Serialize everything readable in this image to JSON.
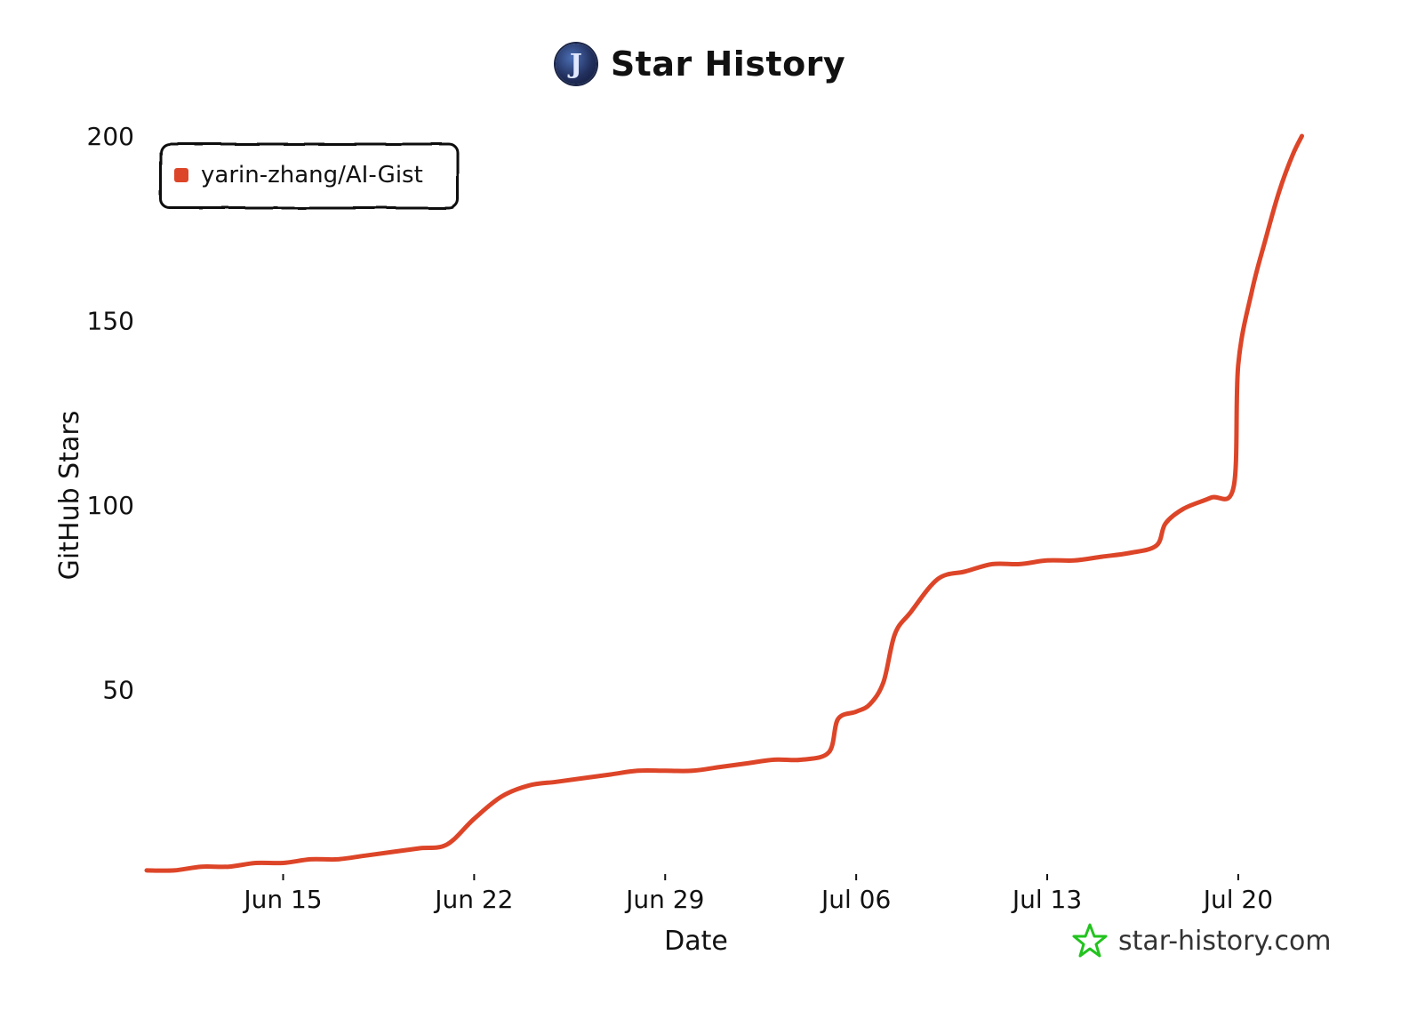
{
  "header": {
    "title": "Star History",
    "logo_letter": "J"
  },
  "watermark": {
    "text": "star-history.com",
    "icon": "star-icon",
    "icon_color": "#22c31e"
  },
  "chart_data": {
    "type": "line",
    "title": "Star History",
    "xlabel": "Date",
    "ylabel": "GitHub Stars",
    "x_type": "date",
    "xlim": [
      "2025-06-10",
      "2025-07-23"
    ],
    "ylim": [
      0,
      200
    ],
    "yticks": [
      50,
      100,
      150,
      200
    ],
    "xticks": [
      {
        "date": "2025-06-15",
        "label": "Jun 15"
      },
      {
        "date": "2025-06-22",
        "label": "Jun 22"
      },
      {
        "date": "2025-06-29",
        "label": "Jun 29"
      },
      {
        "date": "2025-07-06",
        "label": "Jul 06"
      },
      {
        "date": "2025-07-13",
        "label": "Jul 13"
      },
      {
        "date": "2025-07-20",
        "label": "Jul 20"
      }
    ],
    "legend_position": "top-left",
    "grid": false,
    "series": [
      {
        "name": "yarin-zhang/AI-Gist",
        "color": "#dd4528",
        "points": [
          [
            "2025-06-10",
            1
          ],
          [
            "2025-06-11",
            1
          ],
          [
            "2025-06-12",
            2
          ],
          [
            "2025-06-13",
            2
          ],
          [
            "2025-06-14",
            3
          ],
          [
            "2025-06-15",
            3
          ],
          [
            "2025-06-16",
            4
          ],
          [
            "2025-06-17",
            4
          ],
          [
            "2025-06-18",
            5
          ],
          [
            "2025-06-19",
            6
          ],
          [
            "2025-06-20",
            7
          ],
          [
            "2025-06-21",
            8
          ],
          [
            "2025-06-22",
            15
          ],
          [
            "2025-06-23",
            21
          ],
          [
            "2025-06-24",
            24
          ],
          [
            "2025-06-25",
            25
          ],
          [
            "2025-06-26",
            26
          ],
          [
            "2025-06-27",
            27
          ],
          [
            "2025-06-28",
            28
          ],
          [
            "2025-06-29",
            28
          ],
          [
            "2025-06-30",
            28
          ],
          [
            "2025-07-01",
            29
          ],
          [
            "2025-07-02",
            30
          ],
          [
            "2025-07-03",
            31
          ],
          [
            "2025-07-04",
            31
          ],
          [
            "2025-07-05",
            33
          ],
          [
            "2025-07-05T08:00",
            42
          ],
          [
            "2025-07-06",
            44
          ],
          [
            "2025-07-06T12:00",
            46
          ],
          [
            "2025-07-07",
            52
          ],
          [
            "2025-07-07T10:00",
            65
          ],
          [
            "2025-07-08",
            71
          ],
          [
            "2025-07-09",
            80
          ],
          [
            "2025-07-10",
            82
          ],
          [
            "2025-07-11",
            84
          ],
          [
            "2025-07-12",
            84
          ],
          [
            "2025-07-13",
            85
          ],
          [
            "2025-07-14",
            85
          ],
          [
            "2025-07-15",
            86
          ],
          [
            "2025-07-16",
            87
          ],
          [
            "2025-07-17",
            89
          ],
          [
            "2025-07-17T08:00",
            95
          ],
          [
            "2025-07-18",
            99
          ],
          [
            "2025-07-19",
            102
          ],
          [
            "2025-07-19T20:00",
            105
          ],
          [
            "2025-07-20",
            138
          ],
          [
            "2025-07-20T12:00",
            158
          ],
          [
            "2025-07-21",
            172
          ],
          [
            "2025-07-21T12:00",
            185
          ],
          [
            "2025-07-22",
            195
          ],
          [
            "2025-07-22T08:00",
            200
          ]
        ]
      }
    ]
  }
}
